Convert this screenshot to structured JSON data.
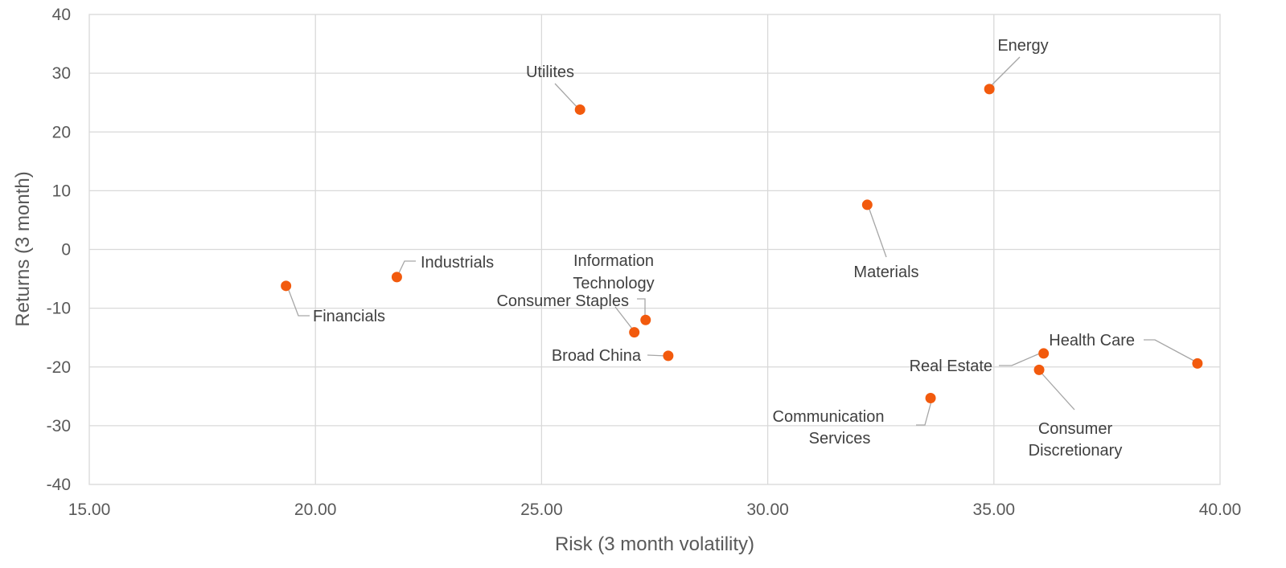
{
  "chart_data": {
    "type": "scatter",
    "title": "",
    "xlabel": "Risk (3 month volatility)",
    "ylabel": "Returns (3 month)",
    "xlim": [
      15,
      40
    ],
    "ylim": [
      -40,
      40
    ],
    "xticks": [
      15,
      20,
      25,
      30,
      35,
      40
    ],
    "xtick_labels": [
      "15.00",
      "20.00",
      "25.00",
      "30.00",
      "35.00",
      "40.00"
    ],
    "yticks": [
      -40,
      -30,
      -20,
      -10,
      0,
      10,
      20,
      30,
      40
    ],
    "ytick_labels": [
      "-40",
      "-30",
      "-20",
      "-10",
      "0",
      "10",
      "20",
      "30",
      "40"
    ],
    "grid": true,
    "legend": "none",
    "marker_color": "#f25a0d",
    "points": [
      {
        "label": "Energy",
        "x": 34.9,
        "y": 27.3
      },
      {
        "label": "Utilites",
        "x": 25.85,
        "y": 23.8
      },
      {
        "label": "Materials",
        "x": 32.2,
        "y": 7.6
      },
      {
        "label": "Industrials",
        "x": 21.8,
        "y": -4.7
      },
      {
        "label": "Financials",
        "x": 19.35,
        "y": -6.2
      },
      {
        "label": "Information Technology",
        "x": 27.3,
        "y": -12.0
      },
      {
        "label": "Consumer Staples",
        "x": 27.05,
        "y": -14.1
      },
      {
        "label": "Broad China",
        "x": 27.8,
        "y": -18.1
      },
      {
        "label": "Health Care",
        "x": 39.5,
        "y": -19.4
      },
      {
        "label": "Real Estate",
        "x": 36.1,
        "y": -17.7
      },
      {
        "label": "Consumer Discretionary",
        "x": 36.0,
        "y": -20.5
      },
      {
        "label": "Communication Services",
        "x": 33.6,
        "y": -25.3
      }
    ]
  }
}
